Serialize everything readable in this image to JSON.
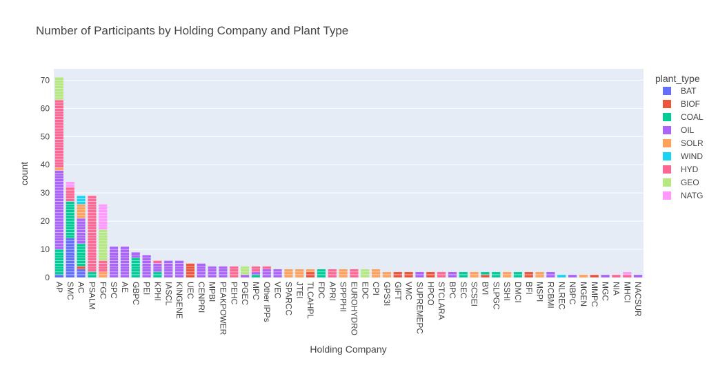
{
  "chart_data": {
    "type": "bar",
    "stacked": true,
    "title": "Number of Participants by Holding Company and Plant Type",
    "xlabel": "Holding Company",
    "ylabel": "count",
    "ylim": [
      0,
      74
    ],
    "yticks": [
      0,
      10,
      20,
      30,
      40,
      50,
      60,
      70
    ],
    "grid": true,
    "legend": {
      "title": "plant_type",
      "placement": "right"
    },
    "categories": [
      "AP",
      "SMC",
      "AC",
      "PSALM",
      "FGC",
      "SPC",
      "AE",
      "GBPC",
      "PEI",
      "KPHI",
      "IASCL",
      "KINGENE",
      "UEC",
      "CENPRI",
      "MPBI",
      "PEAKPOWER",
      "PEHC",
      "PGEC",
      "MPC",
      "Other IPPs",
      "VEC",
      "SPARCC",
      "JTEI",
      "TLCAHPL",
      "FDC",
      "APRI",
      "SPPPHI",
      "EUROHYDRO",
      "EDC",
      "CPI",
      "GPS3I",
      "GIFT",
      "VMC",
      "SUPREMEPC",
      "HPCO",
      "STCLARA",
      "BPC",
      "SEC",
      "SCSEI",
      "BVI",
      "SLPGC",
      "SSHI",
      "DMCI",
      "BFI",
      "MSPI",
      "RCBMI",
      "NLREC",
      "NBPC",
      "MGEN",
      "MMPC",
      "MGC",
      "NIA",
      "MHCI",
      "NACSUR"
    ],
    "series": [
      {
        "name": "BAT",
        "color": "#636efa",
        "values": [
          1,
          14,
          3,
          0,
          0,
          0,
          0,
          0,
          0,
          0,
          0,
          0,
          0,
          0,
          0,
          0,
          0,
          0,
          0,
          0,
          0,
          0,
          0,
          0,
          0,
          0,
          0,
          0,
          0,
          0,
          0,
          0,
          0,
          0,
          0,
          0,
          0,
          0,
          0,
          0,
          0,
          0,
          0,
          0,
          0,
          0,
          0,
          0,
          0,
          0,
          0,
          0,
          0,
          0
        ]
      },
      {
        "name": "BIOF",
        "color": "#EF553B",
        "values": [
          0,
          0,
          1,
          0,
          0,
          0,
          0,
          0,
          0,
          0,
          0,
          0,
          5,
          0,
          0,
          0,
          0,
          0,
          0,
          0,
          0,
          0,
          0,
          2,
          0,
          0,
          0,
          0,
          0,
          0,
          0,
          2,
          2,
          0,
          2,
          0,
          0,
          0,
          0,
          1,
          0,
          0,
          0,
          2,
          0,
          0,
          0,
          0,
          0,
          1,
          0,
          0,
          0,
          0
        ]
      },
      {
        "name": "COAL",
        "color": "#00cc96",
        "values": [
          9,
          13,
          8,
          2,
          0,
          0,
          0,
          7,
          0,
          2,
          0,
          0,
          0,
          0,
          0,
          0,
          0,
          0,
          1,
          0,
          0,
          0,
          0,
          0,
          3,
          0,
          0,
          0,
          0,
          0,
          0,
          0,
          0,
          0,
          0,
          0,
          0,
          2,
          0,
          1,
          2,
          0,
          2,
          0,
          0,
          0,
          0,
          0,
          0,
          0,
          0,
          0,
          0,
          0
        ]
      },
      {
        "name": "OIL",
        "color": "#ab63fa",
        "values": [
          28,
          0,
          9,
          0,
          0,
          11,
          11,
          2,
          8,
          3,
          6,
          6,
          0,
          5,
          4,
          4,
          0,
          1,
          1,
          3,
          3,
          0,
          0,
          0,
          0,
          0,
          0,
          0,
          0,
          0,
          0,
          0,
          0,
          2,
          0,
          0,
          2,
          0,
          0,
          0,
          0,
          0,
          0,
          0,
          0,
          2,
          0,
          1,
          0,
          0,
          1,
          0,
          0,
          1
        ]
      },
      {
        "name": "SOLR",
        "color": "#FFA15A",
        "values": [
          1,
          0,
          5,
          0,
          2,
          0,
          0,
          0,
          0,
          0,
          0,
          0,
          0,
          0,
          0,
          0,
          0,
          0,
          0,
          0,
          0,
          3,
          3,
          1,
          0,
          0,
          3,
          0,
          0,
          3,
          2,
          0,
          0,
          0,
          0,
          0,
          0,
          0,
          2,
          0,
          0,
          2,
          0,
          0,
          2,
          0,
          0,
          0,
          1,
          0,
          0,
          0,
          0,
          0
        ]
      },
      {
        "name": "WIND",
        "color": "#19d3f3",
        "values": [
          0,
          0,
          3,
          0,
          0,
          0,
          0,
          0,
          0,
          0,
          0,
          0,
          0,
          0,
          0,
          0,
          0,
          0,
          0,
          0,
          0,
          0,
          0,
          0,
          0,
          0,
          0,
          0,
          0,
          0,
          0,
          0,
          0,
          0,
          0,
          0,
          0,
          0,
          0,
          0,
          0,
          0,
          0,
          0,
          0,
          0,
          1,
          0,
          0,
          0,
          0,
          0,
          0,
          0
        ]
      },
      {
        "name": "HYD",
        "color": "#FF6692",
        "values": [
          24,
          5,
          0,
          27,
          4,
          0,
          0,
          0,
          0,
          1,
          0,
          0,
          0,
          0,
          0,
          0,
          4,
          0,
          2,
          1,
          0,
          0,
          0,
          0,
          0,
          3,
          0,
          3,
          0,
          0,
          0,
          0,
          0,
          0,
          0,
          2,
          0,
          0,
          0,
          0,
          0,
          0,
          0,
          0,
          0,
          0,
          0,
          0,
          0,
          0,
          0,
          1,
          1,
          0
        ]
      },
      {
        "name": "GEO",
        "color": "#B6E880",
        "values": [
          8,
          0,
          0,
          0,
          11,
          0,
          0,
          0,
          0,
          0,
          0,
          0,
          0,
          0,
          0,
          0,
          0,
          3,
          0,
          0,
          0,
          0,
          0,
          0,
          0,
          0,
          0,
          0,
          3,
          0,
          0,
          0,
          0,
          0,
          0,
          0,
          0,
          0,
          0,
          0,
          0,
          0,
          0,
          0,
          0,
          0,
          0,
          0,
          0,
          0,
          0,
          0,
          0,
          0
        ]
      },
      {
        "name": "NATG",
        "color": "#FF97FF",
        "values": [
          0,
          2,
          0,
          0,
          9,
          0,
          0,
          0,
          0,
          0,
          0,
          0,
          0,
          0,
          0,
          0,
          0,
          0,
          0,
          0,
          0,
          0,
          0,
          0,
          0,
          0,
          0,
          0,
          0,
          0,
          0,
          0,
          0,
          0,
          0,
          0,
          0,
          0,
          0,
          0,
          0,
          0,
          0,
          0,
          0,
          0,
          0,
          0,
          0,
          0,
          0,
          0,
          1,
          0
        ]
      }
    ]
  }
}
